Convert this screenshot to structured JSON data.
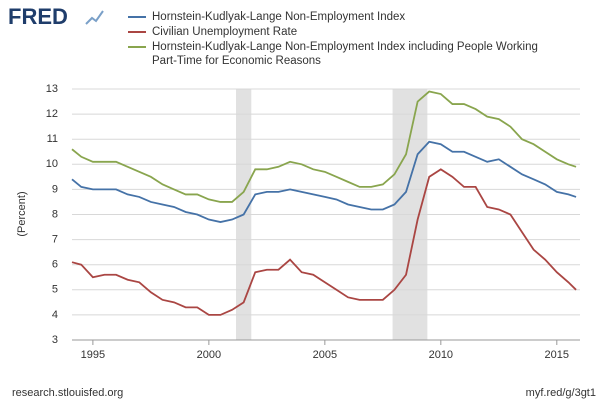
{
  "logo": "FRED",
  "footer": {
    "left": "research.stlouisfed.org",
    "right": "myf.red/g/3gt1"
  },
  "chart_data": {
    "type": "line",
    "y_label": "(Percent)",
    "x": [
      1994.1,
      1994.5,
      1995,
      1995.5,
      1996,
      1996.5,
      1997,
      1997.5,
      1998,
      1998.5,
      1999,
      1999.5,
      2000,
      2000.5,
      2001,
      2001.5,
      2002,
      2002.5,
      2003,
      2003.5,
      2004,
      2004.5,
      2005,
      2005.5,
      2006,
      2006.5,
      2007,
      2007.5,
      2008,
      2008.5,
      2009,
      2009.5,
      2010,
      2010.5,
      2011,
      2011.5,
      2012,
      2012.5,
      2013,
      2013.5,
      2014,
      2014.5,
      2015,
      2015.5,
      2015.83
    ],
    "series": [
      {
        "name": "Hornstein-Kudlyak-Lange Non-Employment Index",
        "color": "#4572a7",
        "values": [
          9.4,
          9.1,
          9.0,
          9.0,
          9.0,
          8.8,
          8.7,
          8.5,
          8.4,
          8.3,
          8.1,
          8.0,
          7.8,
          7.7,
          7.8,
          8.0,
          8.8,
          8.9,
          8.9,
          9.0,
          8.9,
          8.8,
          8.7,
          8.6,
          8.4,
          8.3,
          8.2,
          8.2,
          8.4,
          8.9,
          10.4,
          10.9,
          10.8,
          10.5,
          10.5,
          10.3,
          10.1,
          10.2,
          9.9,
          9.6,
          9.4,
          9.2,
          8.9,
          8.8,
          8.7
        ]
      },
      {
        "name": "Civilian Unemployment Rate",
        "color": "#aa4643",
        "values": [
          6.1,
          6.0,
          5.5,
          5.6,
          5.6,
          5.4,
          5.3,
          4.9,
          4.6,
          4.5,
          4.3,
          4.3,
          4.0,
          4.0,
          4.2,
          4.5,
          5.7,
          5.8,
          5.8,
          6.2,
          5.7,
          5.6,
          5.3,
          5.0,
          4.7,
          4.6,
          4.6,
          4.6,
          5.0,
          5.6,
          7.8,
          9.5,
          9.8,
          9.5,
          9.1,
          9.1,
          8.3,
          8.2,
          8.0,
          7.3,
          6.6,
          6.2,
          5.7,
          5.3,
          5.0
        ]
      },
      {
        "name": "Hornstein-Kudlyak-Lange Non-Employment Index including People Working Part-Time for Economic Reasons",
        "color": "#89a54e",
        "values": [
          10.6,
          10.3,
          10.1,
          10.1,
          10.1,
          9.9,
          9.7,
          9.5,
          9.2,
          9.0,
          8.8,
          8.8,
          8.6,
          8.5,
          8.5,
          8.9,
          9.8,
          9.8,
          9.9,
          10.1,
          10.0,
          9.8,
          9.7,
          9.5,
          9.3,
          9.1,
          9.1,
          9.2,
          9.6,
          10.4,
          12.5,
          12.9,
          12.8,
          12.4,
          12.4,
          12.2,
          11.9,
          11.8,
          11.5,
          11.0,
          10.8,
          10.5,
          10.2,
          10.0,
          9.9
        ]
      }
    ],
    "recessions": [
      [
        2001.17,
        2001.83
      ],
      [
        2007.92,
        2009.42
      ]
    ],
    "recession_color": "#e1e1e1",
    "xlim": [
      1994.1,
      2016.0
    ],
    "xticks": [
      1995,
      2000,
      2005,
      2010,
      2015
    ],
    "ylim": [
      3,
      13
    ],
    "yticks": [
      3,
      4,
      5,
      6,
      7,
      8,
      9,
      10,
      11,
      12,
      13
    ],
    "grid": true
  }
}
